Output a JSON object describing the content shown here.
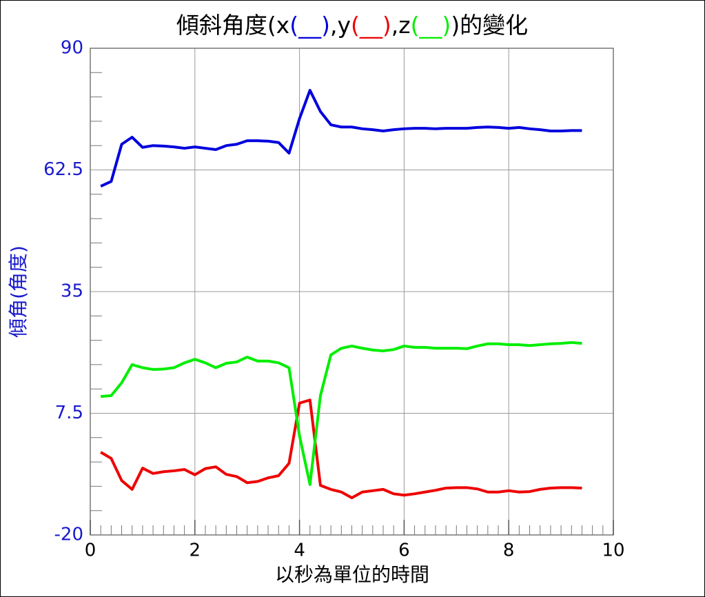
{
  "chart_data": {
    "type": "line",
    "title_parts": [
      "傾斜角度(x",
      "(__)",
      ",y",
      "(__)",
      ",z",
      "(__)",
      ")的變化"
    ],
    "xlabel": "以秒為單位的時間",
    "ylabel": "傾角(角度)",
    "x": [
      0.2,
      0.4,
      0.6,
      0.8,
      1.0,
      1.2,
      1.4,
      1.6,
      1.8,
      2.0,
      2.2,
      2.4,
      2.6,
      2.8,
      3.0,
      3.2,
      3.4,
      3.6,
      3.8,
      4.0,
      4.2,
      4.4,
      4.6,
      4.8,
      5.0,
      5.2,
      5.4,
      5.6,
      5.8,
      6.0,
      6.2,
      6.4,
      6.6,
      6.8,
      7.0,
      7.2,
      7.4,
      7.6,
      7.8,
      8.0,
      8.2,
      8.4,
      8.6,
      8.8,
      9.0,
      9.2,
      9.4
    ],
    "series": [
      {
        "color": "#0000dd",
        "values": [
          58.8,
          59.9,
          68.3,
          69.9,
          67.6,
          68.0,
          67.9,
          67.7,
          67.4,
          67.7,
          67.4,
          67.1,
          68.0,
          68.3,
          69.1,
          69.1,
          69.0,
          68.7,
          66.3,
          74.1,
          80.5,
          75.7,
          72.7,
          72.2,
          72.2,
          71.8,
          71.6,
          71.3,
          71.6,
          71.8,
          71.9,
          71.9,
          71.8,
          71.9,
          71.9,
          71.9,
          72.1,
          72.2,
          72.1,
          71.9,
          72.1,
          71.8,
          71.6,
          71.3,
          71.3,
          71.4,
          71.4
        ]
      },
      {
        "color": "#ee0000",
        "values": [
          -1.3,
          -2.7,
          -7.7,
          -9.7,
          -4.9,
          -6.1,
          -5.7,
          -5.5,
          -5.2,
          -6.4,
          -5.0,
          -4.6,
          -6.3,
          -6.8,
          -8.2,
          -7.9,
          -7.1,
          -6.6,
          -3.8,
          9.8,
          10.5,
          -8.8,
          -9.7,
          -10.3,
          -11.6,
          -10.3,
          -10.0,
          -9.7,
          -10.7,
          -11.0,
          -10.7,
          -10.3,
          -9.9,
          -9.4,
          -9.3,
          -9.3,
          -9.6,
          -10.3,
          -10.3,
          -10.0,
          -10.3,
          -10.2,
          -9.7,
          -9.4,
          -9.3,
          -9.3,
          -9.4
        ]
      },
      {
        "color": "#00ee00",
        "values": [
          11.3,
          11.5,
          14.4,
          18.5,
          17.8,
          17.4,
          17.5,
          17.8,
          18.9,
          19.7,
          18.9,
          17.8,
          18.8,
          19.1,
          20.2,
          19.3,
          19.3,
          18.9,
          17.8,
          2.4,
          -8.6,
          11.5,
          20.7,
          22.2,
          22.7,
          22.2,
          21.8,
          21.6,
          21.9,
          22.7,
          22.4,
          22.4,
          22.2,
          22.2,
          22.2,
          22.1,
          22.7,
          23.2,
          23.2,
          23.0,
          23.0,
          22.8,
          23.0,
          23.2,
          23.3,
          23.5,
          23.3
        ]
      }
    ],
    "xlim": [
      0,
      10
    ],
    "xticks": [
      0,
      2,
      4,
      6,
      8,
      10
    ],
    "ylim": [
      -20,
      90
    ],
    "yticks": [
      -20,
      7.5,
      35,
      62.5,
      90
    ],
    "grid": true
  }
}
